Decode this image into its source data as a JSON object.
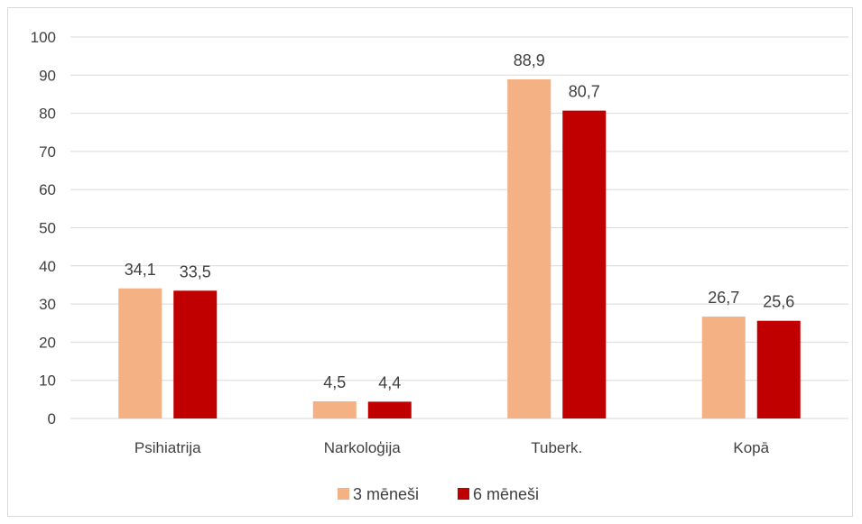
{
  "chart_data": {
    "type": "bar",
    "categories": [
      "Psihiatrija",
      "Narkoloģija",
      "Tuberk.",
      "Kopā"
    ],
    "series": [
      {
        "name": "3 mēneši",
        "values": [
          34.1,
          4.5,
          88.9,
          26.7
        ],
        "labels": [
          "34,1",
          "4,5",
          "88,9",
          "26,7"
        ],
        "color": "#f4b183"
      },
      {
        "name": "6 mēneši",
        "values": [
          33.5,
          4.4,
          80.7,
          25.6
        ],
        "labels": [
          "33,5",
          "4,4",
          "80,7",
          "25,6"
        ],
        "color": "#c00000"
      }
    ],
    "ylim": [
      0,
      100
    ],
    "yticks": [
      0,
      10,
      20,
      30,
      40,
      50,
      60,
      70,
      80,
      90,
      100
    ],
    "grid": true,
    "legend_position": "bottom"
  }
}
